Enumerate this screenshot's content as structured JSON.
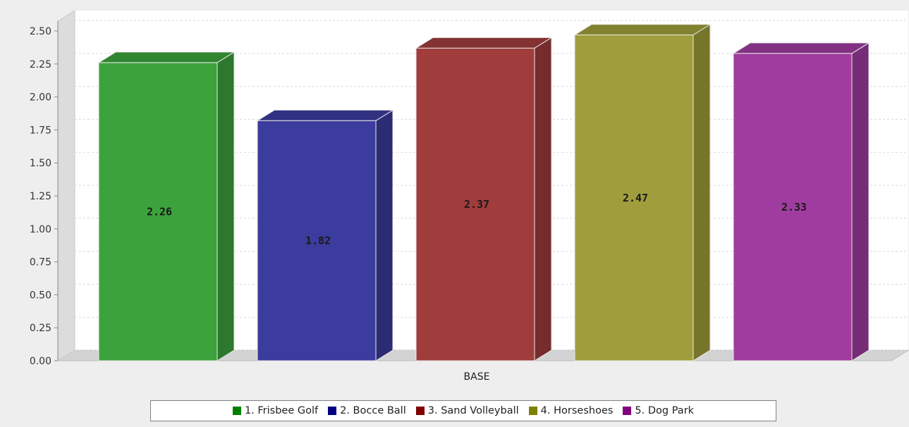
{
  "chart_data": {
    "type": "bar",
    "style": "3d",
    "title": "",
    "xlabel": "",
    "ylabel": "",
    "categories": [
      "BASE"
    ],
    "ylim": [
      0,
      2.5
    ],
    "yticks": [
      "0.00",
      "0.25",
      "0.50",
      "0.75",
      "1.00",
      "1.25",
      "1.50",
      "1.75",
      "2.00",
      "2.25",
      "2.50"
    ],
    "grid": true,
    "legend_position": "bottom",
    "series": [
      {
        "name": "1. Frisbee Golf",
        "value": 2.26,
        "label": "2.26",
        "color": "#3ca23c"
      },
      {
        "name": "2. Bocce Ball",
        "value": 1.82,
        "label": "1.82",
        "color": "#3c3c9e"
      },
      {
        "name": "3. Sand Volleyball",
        "value": 2.37,
        "label": "2.37",
        "color": "#a03c3c"
      },
      {
        "name": "4. Horseshoes",
        "value": 2.47,
        "label": "2.47",
        "color": "#a09e3c"
      },
      {
        "name": "5. Dog Park",
        "value": 2.33,
        "label": "2.33",
        "color": "#a03ca0"
      }
    ]
  }
}
